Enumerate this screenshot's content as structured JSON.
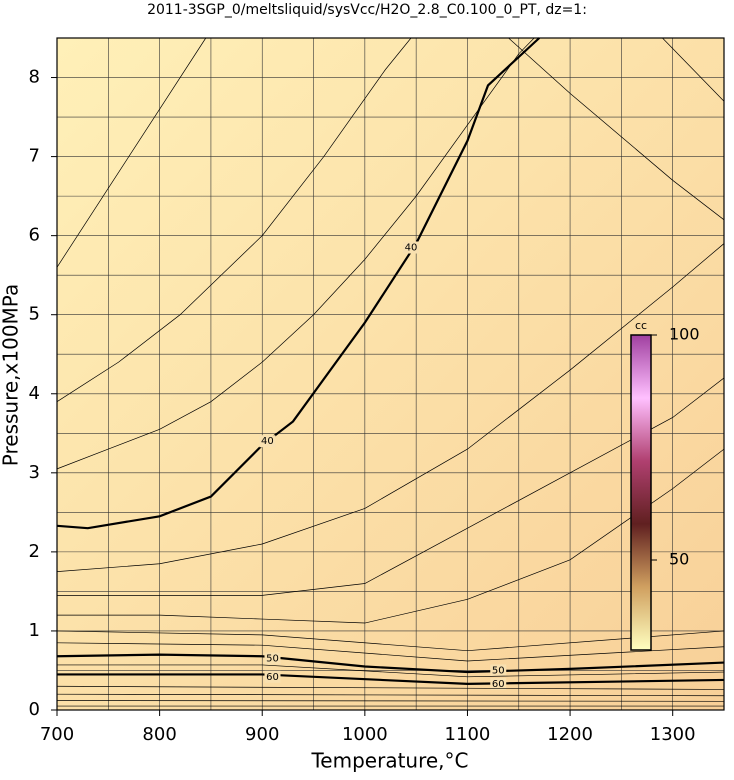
{
  "chart_data": {
    "type": "contour",
    "title": "2011-3SGP_0/meltsliquid/sysVcc/H2O_2.8_C0.100_0_PT, dz=1:",
    "x_label": "Temperature,°C",
    "y_label": "Pressure,x100MPa",
    "xlim": [
      700,
      1350
    ],
    "ylim": [
      0,
      8.5
    ],
    "xticks": [
      700,
      800,
      900,
      1000,
      1100,
      1200,
      1300
    ],
    "yticks": [
      0,
      1,
      2,
      3,
      4,
      5,
      6,
      7,
      8
    ],
    "xminorticks": [
      750,
      850,
      950,
      1050,
      1150,
      1250
    ],
    "yminorticks": [
      0.5,
      1.5,
      2.5,
      3.5,
      4.5,
      5.5,
      6.5,
      7.5
    ],
    "grid": true,
    "contours": [
      {
        "level": 40,
        "x": [
          700,
          730,
          800,
          850,
          900,
          930,
          1000,
          1050,
          1100,
          1120,
          1170
        ],
        "y": [
          2.33,
          2.3,
          2.45,
          2.7,
          3.35,
          3.65,
          4.9,
          5.9,
          7.2,
          7.9,
          8.5
        ],
        "label_x": [
          905,
          1045
        ],
        "label_y": [
          3.4,
          5.85
        ]
      },
      {
        "level": 50,
        "x": [
          700,
          800,
          900,
          1000,
          1100,
          1200,
          1350
        ],
        "y": [
          0.68,
          0.7,
          0.68,
          0.55,
          0.48,
          0.52,
          0.6
        ],
        "label_x": [
          910,
          1130
        ],
        "label_y": [
          0.65,
          0.5
        ]
      },
      {
        "level": 60,
        "x": [
          700,
          900,
          1100,
          1350
        ],
        "y": [
          0.45,
          0.45,
          0.33,
          0.38
        ],
        "label_x": [
          910,
          1130
        ],
        "label_y": [
          0.42,
          0.33
        ]
      },
      {
        "x": [
          700,
          750,
          800,
          845
        ],
        "y": [
          5.6,
          6.6,
          7.6,
          8.5
        ]
      },
      {
        "x": [
          700,
          760,
          820,
          900,
          960,
          1020,
          1045
        ],
        "y": [
          3.9,
          4.4,
          5.0,
          6.0,
          7.0,
          8.1,
          8.5
        ]
      },
      {
        "x": [
          700,
          750,
          800,
          850,
          900,
          950,
          1000,
          1050,
          1100,
          1150,
          1165
        ],
        "y": [
          3.05,
          3.3,
          3.55,
          3.9,
          4.4,
          5.0,
          5.7,
          6.5,
          7.4,
          8.3,
          8.5
        ]
      },
      {
        "x": [
          700,
          800,
          900,
          1000,
          1100,
          1200,
          1300,
          1350
        ],
        "y": [
          1.75,
          1.85,
          2.1,
          2.55,
          3.3,
          4.3,
          5.35,
          5.9
        ]
      },
      {
        "x": [
          700,
          800,
          900,
          1000,
          1100,
          1200,
          1300,
          1350
        ],
        "y": [
          1.45,
          1.45,
          1.45,
          1.6,
          2.3,
          3.0,
          3.7,
          4.2
        ]
      },
      {
        "x": [
          700,
          800,
          900,
          1000,
          1100,
          1200,
          1300,
          1350
        ],
        "y": [
          1.2,
          1.2,
          1.15,
          1.1,
          1.4,
          1.9,
          2.8,
          3.3
        ]
      },
      {
        "x": [
          1140,
          1200,
          1300,
          1350
        ],
        "y": [
          8.5,
          7.8,
          6.7,
          6.2
        ]
      },
      {
        "x": [
          1290,
          1350
        ],
        "y": [
          8.5,
          7.7
        ]
      },
      {
        "x": [
          700,
          900,
          1100,
          1350
        ],
        "y": [
          1.0,
          0.95,
          0.75,
          1.0
        ]
      },
      {
        "x": [
          700,
          900,
          1100,
          1350
        ],
        "y": [
          0.85,
          0.82,
          0.62,
          0.8
        ]
      },
      {
        "x": [
          700,
          900,
          1100,
          1350
        ],
        "y": [
          0.57,
          0.57,
          0.42,
          0.48
        ]
      },
      {
        "x": [
          700,
          1350
        ],
        "y": [
          0.3,
          0.26
        ]
      },
      {
        "x": [
          700,
          1350
        ],
        "y": [
          0.2,
          0.18
        ]
      },
      {
        "x": [
          700,
          1350
        ],
        "y": [
          0.12,
          0.11
        ]
      },
      {
        "x": [
          700,
          1350
        ],
        "y": [
          0.05,
          0.05
        ]
      }
    ],
    "colorbar": {
      "label": "cc",
      "lim": [
        30,
        100
      ],
      "ticks": [
        50,
        100
      ],
      "colors": [
        "#ffffc0",
        "#d0a060",
        "#602020",
        "#b04070",
        "#ffc0ff",
        "#a040a0"
      ]
    }
  }
}
